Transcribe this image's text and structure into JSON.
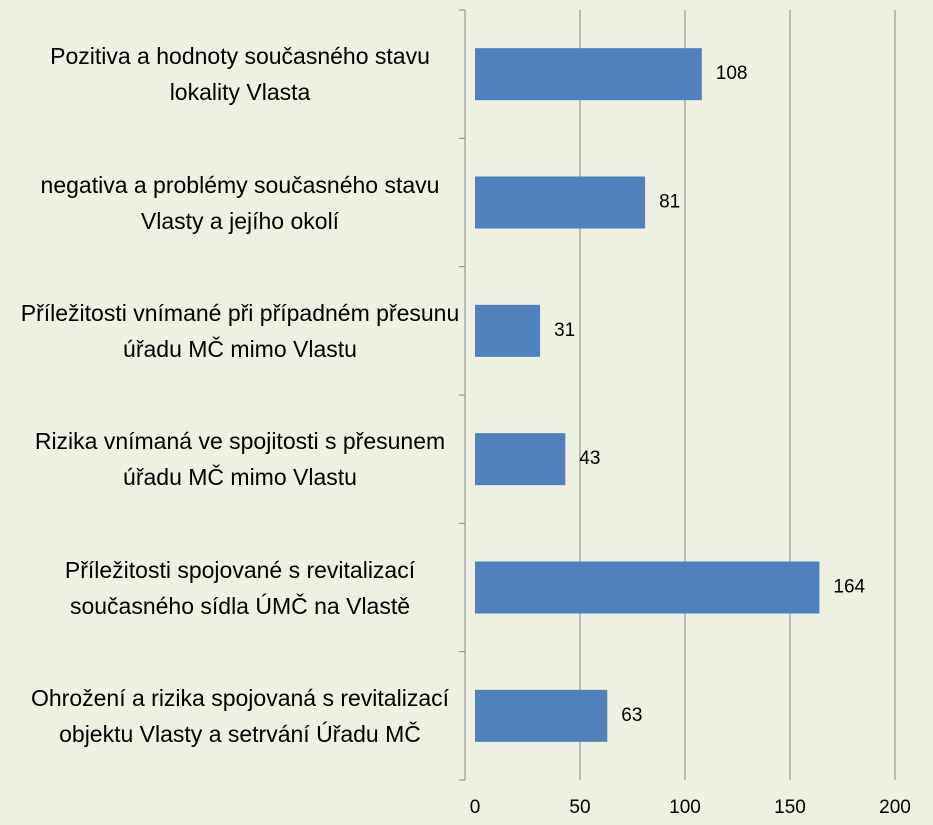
{
  "chart_data": {
    "type": "bar",
    "orientation": "horizontal",
    "categories": [
      "Pozitiva a hodnoty současného stavu lokality Vlasta",
      "negativa a problémy současného stavu Vlasty a jejího okolí",
      "Příležitosti vnímané při případném přesunu úřadu MČ mimo Vlastu",
      "Rizika vnímaná ve spojitosti s přesunem úřadu MČ mimo Vlastu",
      "Příležitosti spojované s revitalizací současného sídla ÚMČ na Vlastě",
      "Ohrožení a rizika spojovaná s revitalizací objektu Vlasty a setrvání Úřadu MČ"
    ],
    "values": [
      108,
      81,
      31,
      43,
      164,
      63
    ],
    "color": "#4f81bd",
    "xlim": [
      0,
      200
    ],
    "xticks": [
      0,
      50,
      100,
      150,
      200
    ],
    "grid": true
  }
}
